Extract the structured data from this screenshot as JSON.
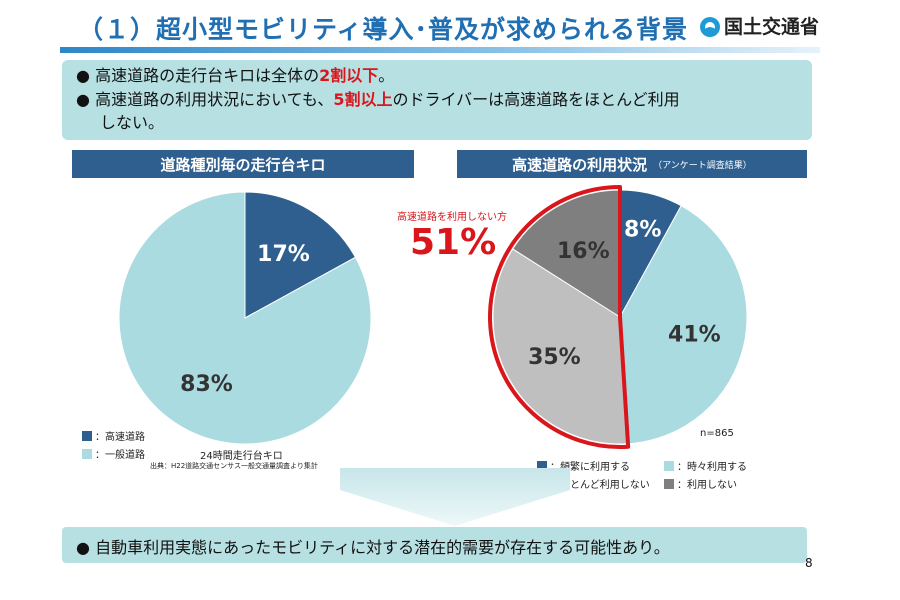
{
  "header": {
    "title": "（１）超小型モビリティ導入･普及が求められる背景",
    "logo_text": "国土交通省"
  },
  "summary": {
    "bullet1_pre": "高速道路の走行台キロは全体の",
    "bullet1_em": "2割以下",
    "bullet1_post": "。",
    "bullet2_pre": "高速道路の利用状況においても、",
    "bullet2_em": "5割以上",
    "bullet2_post": "のドライバーは高速道路をほとんど利用",
    "bullet2_cont": "しない。"
  },
  "left_panel": {
    "header": "道路種別毎の走行台キロ",
    "legend": [
      {
        "label": "：高速道路",
        "color": "#2f5f8e"
      },
      {
        "label": "：一般道路",
        "color": "#a9dbe0"
      }
    ],
    "note": "24時間走行台キロ",
    "source": "出典：H22道路交通センサス一般交通量調査より集計"
  },
  "right_panel": {
    "header": "高速道路の利用状況",
    "header_sub": "（アンケート調査結果）",
    "callout_label": "高速道路を利用しない方",
    "callout_value": "51%",
    "n_label": "n=865",
    "legend": [
      {
        "label": "：頻繁に利用する",
        "color": "#2f5f8e"
      },
      {
        "label": "：時々利用する",
        "color": "#a9dbe0"
      },
      {
        "label": "：ほとんど利用しない",
        "color": "#bfbfbf"
      },
      {
        "label": "：利用しない",
        "color": "#7f7f7f"
      }
    ]
  },
  "colors": {
    "accent_red": "#d9161b",
    "dark_blue": "#2f5f8e",
    "light_teal": "#a9dbe0",
    "box_bg": "#b7e0e3"
  },
  "chart_data": [
    {
      "type": "pie",
      "title": "道路種別毎の走行台キロ",
      "categories": [
        "高速道路",
        "一般道路"
      ],
      "values": [
        17,
        83
      ],
      "labels": [
        "17%",
        "83%"
      ],
      "colors": [
        "#2f5f8e",
        "#a9dbe0"
      ]
    },
    {
      "type": "pie",
      "title": "高速道路の利用状況",
      "categories": [
        "頻繁に利用する",
        "時々利用する",
        "ほとんど利用しない",
        "利用しない"
      ],
      "values": [
        8,
        41,
        35,
        16
      ],
      "labels": [
        "8%",
        "41%",
        "35%",
        "16%"
      ],
      "colors": [
        "#2f5f8e",
        "#a9dbe0",
        "#bfbfbf",
        "#7f7f7f"
      ],
      "highlight": {
        "categories": [
          "ほとんど利用しない",
          "利用しない"
        ],
        "value": 51
      }
    }
  ],
  "footer": {
    "conclusion": "自動車利用実態にあったモビリティに対する潜在的需要が存在する可能性あり。",
    "page_number": "8"
  }
}
